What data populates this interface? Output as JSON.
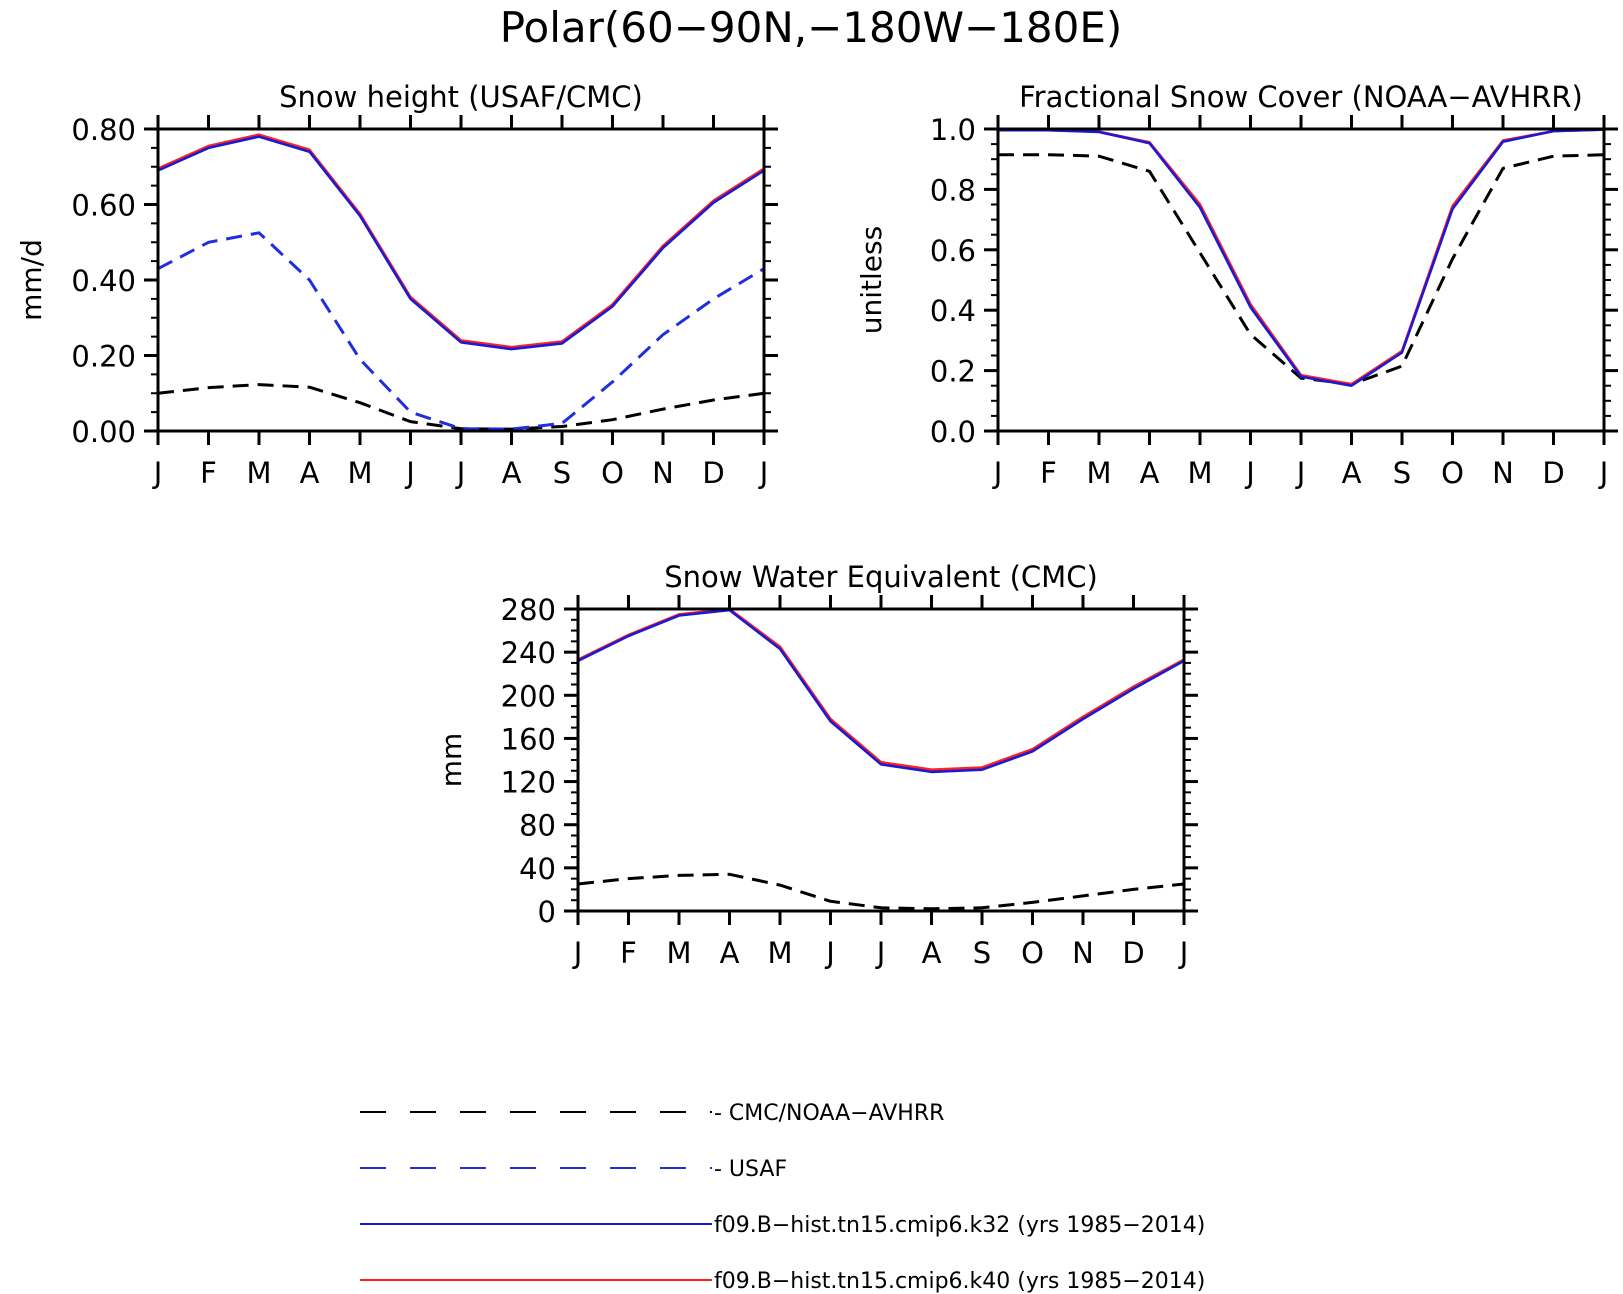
{
  "figure_title": "Polar(60−90N,−180W−180E)",
  "months": [
    "J",
    "F",
    "M",
    "A",
    "M",
    "J",
    "J",
    "A",
    "S",
    "O",
    "N",
    "D",
    "J"
  ],
  "colors": {
    "obs": "#000000",
    "usaf": "#1f2fe0",
    "k32": "#1a1ad6",
    "k40": "#ff2020"
  },
  "legend": [
    {
      "label": "CMC/NOAA−AVHRR",
      "color": "#000000",
      "style": "dashed"
    },
    {
      "label": "USAF",
      "color": "#1f2fe0",
      "style": "dashed"
    },
    {
      "label": "f09.B−hist.tn15.cmip6.k32 (yrs 1985−2014)",
      "color": "#1a1ad6",
      "style": "solid"
    },
    {
      "label": "f09.B−hist.tn15.cmip6.k40 (yrs 1985−2014)",
      "color": "#ff2020",
      "style": "solid"
    }
  ],
  "chart_data": [
    {
      "type": "line",
      "title": "Snow height (USAF/CMC)",
      "ylabel": "mm/d",
      "xlabel": "",
      "categories": [
        "J",
        "F",
        "M",
        "A",
        "M",
        "J",
        "J",
        "A",
        "S",
        "O",
        "N",
        "D",
        "J"
      ],
      "ylim": [
        0,
        0.8
      ],
      "yticks": [
        "0.00",
        "0.20",
        "0.40",
        "0.60",
        "0.80"
      ],
      "ytick_values": [
        0,
        0.2,
        0.4,
        0.6,
        0.8
      ],
      "series": [
        {
          "name": "CMC/NOAA−AVHRR",
          "style": "dashed",
          "color": "#000000",
          "values": [
            0.1,
            0.115,
            0.123,
            0.116,
            0.075,
            0.025,
            0.006,
            0.005,
            0.012,
            0.03,
            0.058,
            0.082,
            0.1
          ]
        },
        {
          "name": "USAF",
          "style": "dashed",
          "color": "#1f2fe0",
          "values": [
            0.43,
            0.5,
            0.525,
            0.4,
            0.19,
            0.05,
            0.006,
            0.005,
            0.02,
            0.13,
            0.255,
            0.35,
            0.43
          ]
        },
        {
          "name": "f09.B−hist.tn15.cmip6.k40 (yrs 1985−2014)",
          "style": "solid",
          "color": "#ff2020",
          "values": [
            0.695,
            0.755,
            0.785,
            0.745,
            0.575,
            0.355,
            0.24,
            0.222,
            0.237,
            0.335,
            0.49,
            0.61,
            0.695
          ]
        },
        {
          "name": "f09.B−hist.tn15.cmip6.k32 (yrs 1985−2014)",
          "style": "solid",
          "color": "#1a1ad6",
          "values": [
            0.69,
            0.75,
            0.78,
            0.74,
            0.57,
            0.35,
            0.235,
            0.217,
            0.232,
            0.33,
            0.485,
            0.605,
            0.69
          ]
        }
      ]
    },
    {
      "type": "line",
      "title": "Fractional Snow Cover (NOAA−AVHRR)",
      "ylabel": "unitless",
      "xlabel": "",
      "categories": [
        "J",
        "F",
        "M",
        "A",
        "M",
        "J",
        "J",
        "A",
        "S",
        "O",
        "N",
        "D",
        "J"
      ],
      "ylim": [
        0,
        1.0
      ],
      "yticks": [
        "0.0",
        "0.2",
        "0.4",
        "0.6",
        "0.8",
        "1.0"
      ],
      "ytick_values": [
        0,
        0.2,
        0.4,
        0.6,
        0.8,
        1.0
      ],
      "series": [
        {
          "name": "CMC/NOAA−AVHRR",
          "style": "dashed",
          "color": "#000000",
          "values": [
            0.915,
            0.915,
            0.91,
            0.86,
            0.59,
            0.32,
            0.175,
            0.155,
            0.215,
            0.57,
            0.87,
            0.91,
            0.915
          ]
        },
        {
          "name": "f09.B−hist.tn15.cmip6.k40 (yrs 1985−2014)",
          "style": "solid",
          "color": "#ff2020",
          "values": [
            0.996,
            0.996,
            0.991,
            0.956,
            0.75,
            0.42,
            0.185,
            0.155,
            0.265,
            0.745,
            0.962,
            0.993,
            0.998
          ]
        },
        {
          "name": "f09.B−hist.tn15.cmip6.k32 (yrs 1985−2014)",
          "style": "solid",
          "color": "#1a1ad6",
          "values": [
            0.996,
            0.996,
            0.99,
            0.953,
            0.74,
            0.41,
            0.18,
            0.15,
            0.26,
            0.735,
            0.958,
            0.993,
            0.998
          ]
        }
      ]
    },
    {
      "type": "line",
      "title": "Snow Water Equivalent (CMC)",
      "ylabel": "mm",
      "xlabel": "",
      "categories": [
        "J",
        "F",
        "M",
        "A",
        "M",
        "J",
        "J",
        "A",
        "S",
        "O",
        "N",
        "D",
        "J"
      ],
      "ylim": [
        0,
        280
      ],
      "yticks": [
        "0",
        "40",
        "80",
        "120",
        "160",
        "200",
        "240",
        "280"
      ],
      "ytick_values": [
        0,
        40,
        80,
        120,
        160,
        200,
        240,
        280
      ],
      "series": [
        {
          "name": "CMC/NOAA−AVHRR",
          "style": "dashed",
          "color": "#000000",
          "values": [
            25,
            30,
            33,
            34,
            24,
            9,
            3,
            2,
            3,
            8,
            14,
            20,
            25
          ]
        },
        {
          "name": "f09.B−hist.tn15.cmip6.k40 (yrs 1985−2014)",
          "style": "solid",
          "color": "#ff2020",
          "values": [
            233,
            256,
            275,
            280,
            245,
            178,
            138,
            131,
            133,
            150,
            180,
            208,
            233
          ]
        },
        {
          "name": "f09.B−hist.tn15.cmip6.k32 (yrs 1985−2014)",
          "style": "solid",
          "color": "#1a1ad6",
          "values": [
            232,
            255,
            274,
            279,
            243,
            176,
            136,
            129,
            131,
            148,
            178,
            206,
            232
          ]
        }
      ]
    }
  ]
}
